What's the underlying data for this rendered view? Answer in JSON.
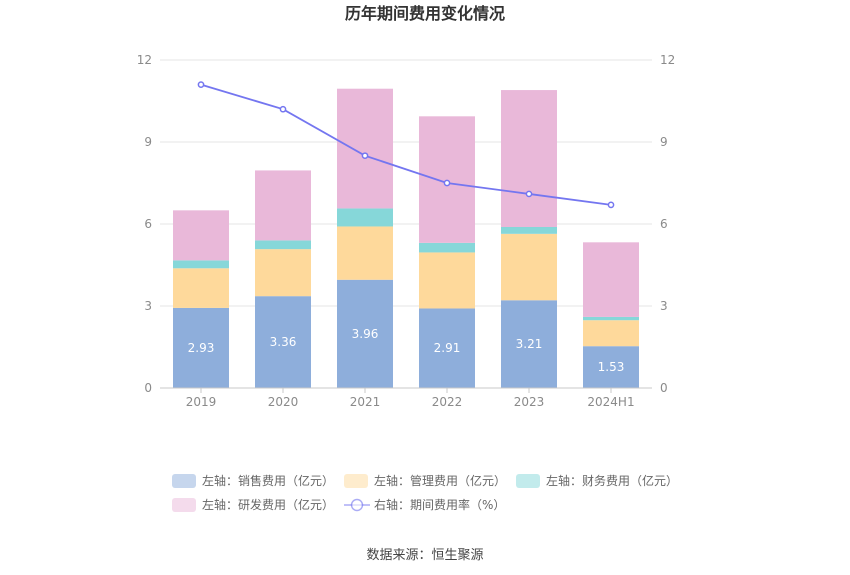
{
  "chart_data": {
    "type": "bar",
    "title": "历年期间费用变化情况",
    "categories": [
      "2019",
      "2020",
      "2021",
      "2022",
      "2023",
      "2024H1"
    ],
    "y_left": {
      "ticks": [
        "0",
        "3",
        "6",
        "9",
        "12"
      ],
      "ylim": [
        0,
        12
      ]
    },
    "y_right": {
      "ticks": [
        "0",
        "3",
        "6",
        "9",
        "12"
      ],
      "ylim": [
        0,
        12
      ]
    },
    "grid": true,
    "legend_placement": "bottom",
    "series": [
      {
        "name": "左轴：销售费用（亿元）",
        "kind": "stacked-bar",
        "axis": "left",
        "color": "#8eaedb",
        "values": [
          2.93,
          3.36,
          3.96,
          2.91,
          3.21,
          1.53
        ],
        "data_labels": [
          "2.93",
          "3.36",
          "3.96",
          "2.91",
          "3.21",
          "1.53"
        ]
      },
      {
        "name": "左轴：管理费用（亿元）",
        "kind": "stacked-bar",
        "axis": "left",
        "color": "#fed99b",
        "values": [
          1.45,
          1.72,
          1.95,
          2.05,
          2.43,
          0.95
        ]
      },
      {
        "name": "左轴：财务费用（亿元）",
        "kind": "stacked-bar",
        "axis": "left",
        "color": "#86d7d9",
        "values": [
          0.29,
          0.32,
          0.66,
          0.35,
          0.25,
          0.12
        ]
      },
      {
        "name": "左轴：研发费用（亿元）",
        "kind": "stacked-bar",
        "axis": "left",
        "color": "#e9b8d9",
        "values": [
          1.83,
          2.56,
          4.38,
          4.63,
          5.01,
          2.73
        ]
      },
      {
        "name": "右轴：期间费用率（%）",
        "kind": "line",
        "axis": "right",
        "color": "#7476f0",
        "values": [
          11.1,
          10.2,
          8.5,
          7.5,
          7.1,
          6.7
        ]
      }
    ]
  },
  "source": "数据来源：恒生聚源"
}
